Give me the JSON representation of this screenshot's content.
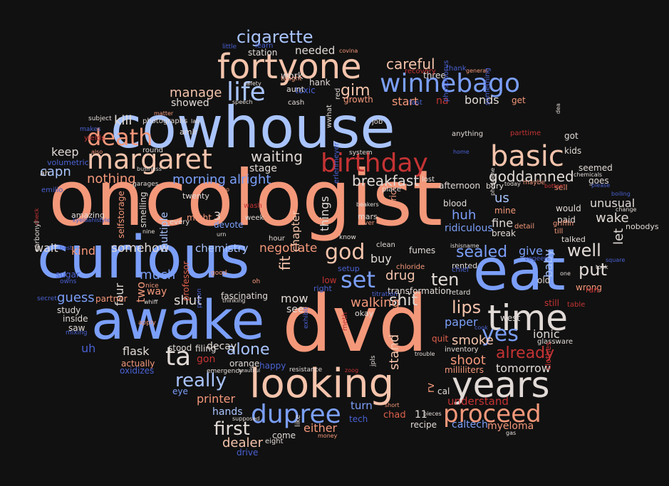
{
  "palette": {
    "background": "#111111",
    "salmon": "#f4987a",
    "light_blue": "#a9c4fd",
    "periwinkle": "#7b9ff9",
    "peach": "#f5c4ac",
    "near_white": "#e1dad6",
    "red": "#c53334",
    "blue": "#4961d2",
    "dark_salmon": "#dd604c"
  },
  "words": [
    {
      "text": "oncologist",
      "color": "salmon"
    },
    {
      "text": "cowhouse",
      "color": "light_blue"
    },
    {
      "text": "curious",
      "color": "periwinkle"
    },
    {
      "text": "dvd",
      "color": "salmon"
    },
    {
      "text": "awake",
      "color": "periwinkle"
    },
    {
      "text": "eat",
      "color": "periwinkle"
    },
    {
      "text": "looking",
      "color": "peach"
    },
    {
      "text": "fortyone",
      "color": "peach"
    },
    {
      "text": "margaret",
      "color": "peach"
    },
    {
      "text": "birthday",
      "color": "red"
    },
    {
      "text": "death",
      "color": "salmon"
    },
    {
      "text": "time",
      "color": "near_white"
    },
    {
      "text": "years",
      "color": "near_white"
    },
    {
      "text": "winnebago",
      "color": "periwinkle"
    },
    {
      "text": "basic",
      "color": "peach"
    },
    {
      "text": "dupree",
      "color": "periwinkle"
    },
    {
      "text": "proceed",
      "color": "salmon"
    },
    {
      "text": "life",
      "color": "light_blue"
    },
    {
      "text": "cigarette",
      "color": "light_blue"
    },
    {
      "text": "god",
      "color": "peach"
    },
    {
      "text": "yes",
      "color": "periwinkle"
    },
    {
      "text": "ta",
      "color": "near_white"
    },
    {
      "text": "set",
      "color": "periwinkle"
    },
    {
      "text": "put",
      "color": "near_white"
    },
    {
      "text": "well",
      "color": "near_white"
    },
    {
      "text": "shit",
      "color": "near_white"
    },
    {
      "text": "lips",
      "color": "peach"
    },
    {
      "text": "really",
      "color": "light_blue"
    },
    {
      "text": "already",
      "color": "red"
    },
    {
      "text": "first",
      "color": "near_white"
    },
    {
      "text": "alone",
      "color": "light_blue"
    },
    {
      "text": "ten",
      "color": "near_white"
    },
    {
      "text": "sealed",
      "color": "periwinkle"
    },
    {
      "text": "careful",
      "color": "peach"
    },
    {
      "text": "gim",
      "color": "peach"
    },
    {
      "text": "waiting",
      "color": "near_white"
    },
    {
      "text": "goddamned",
      "color": "near_white"
    },
    {
      "text": "breakfast",
      "color": "near_white"
    },
    {
      "text": "capn",
      "color": "light_blue"
    },
    {
      "text": "nothing",
      "color": "salmon"
    },
    {
      "text": "morning",
      "color": "periwinkle"
    },
    {
      "text": "alright",
      "color": "periwinkle"
    },
    {
      "text": "much",
      "color": "periwinkle"
    },
    {
      "text": "guess",
      "color": "periwinkle"
    },
    {
      "text": "huh",
      "color": "periwinkle"
    },
    {
      "text": "drug",
      "color": "peach"
    },
    {
      "text": "walking",
      "color": "salmon"
    },
    {
      "text": "smoke",
      "color": "peach"
    },
    {
      "text": "shoot",
      "color": "salmon"
    },
    {
      "text": "tomorrow",
      "color": "near_white"
    },
    {
      "text": "shut",
      "color": "near_white"
    },
    {
      "text": "somehow",
      "color": "near_white"
    },
    {
      "text": "negotiate",
      "color": "salmon"
    },
    {
      "text": "chemistry",
      "color": "light_blue"
    },
    {
      "text": "kill",
      "color": "near_white"
    },
    {
      "text": "manage",
      "color": "peach"
    },
    {
      "text": "keep",
      "color": "near_white"
    },
    {
      "text": "walt",
      "color": "near_white"
    },
    {
      "text": "kind",
      "color": "salmon"
    },
    {
      "text": "printer",
      "color": "salmon"
    },
    {
      "text": "hands",
      "color": "light_blue"
    },
    {
      "text": "dealer",
      "color": "peach"
    },
    {
      "text": "either",
      "color": "salmon"
    },
    {
      "text": "turn",
      "color": "periwinkle"
    },
    {
      "text": "stand",
      "color": "peach"
    },
    {
      "text": "flask",
      "color": "near_white"
    },
    {
      "text": "understand",
      "color": "red"
    },
    {
      "text": "myeloma",
      "color": "salmon"
    },
    {
      "text": "paper",
      "color": "periwinkle"
    },
    {
      "text": "ionic",
      "color": "near_white"
    },
    {
      "text": "wake",
      "color": "near_white"
    },
    {
      "text": "let",
      "color": "near_white"
    },
    {
      "text": "us",
      "color": "light_blue"
    },
    {
      "text": "fine",
      "color": "near_white"
    },
    {
      "text": "unusual",
      "color": "near_white"
    },
    {
      "text": "give",
      "color": "periwinkle"
    },
    {
      "text": "baby",
      "color": "light_blue"
    },
    {
      "text": "start",
      "color": "salmon"
    },
    {
      "text": "bonds",
      "color": "near_white"
    },
    {
      "text": "stage",
      "color": "near_white"
    },
    {
      "text": "fit",
      "color": "peach"
    },
    {
      "text": "chapter",
      "color": "peach"
    },
    {
      "text": "things",
      "color": "near_white"
    },
    {
      "text": "mow",
      "color": "near_white"
    },
    {
      "text": "needed",
      "color": "near_white"
    },
    {
      "text": "multiple",
      "color": "light_blue"
    },
    {
      "text": "decay",
      "color": "near_white"
    },
    {
      "text": "buy",
      "color": "near_white"
    },
    {
      "text": "ridiculous",
      "color": "periwinkle"
    },
    {
      "text": "uh",
      "color": "blue"
    },
    {
      "text": "na",
      "color": "red"
    },
    {
      "text": "two",
      "color": "salmon"
    },
    {
      "text": "way",
      "color": "salmon"
    },
    {
      "text": "professor",
      "color": "dark_salmon"
    },
    {
      "text": "devote",
      "color": "periwinkle"
    },
    {
      "text": "might",
      "color": "salmon"
    },
    {
      "text": "3",
      "color": "near_white"
    },
    {
      "text": "11",
      "color": "near_white"
    },
    {
      "text": "rv",
      "color": "salmon"
    },
    {
      "text": "see",
      "color": "near_white"
    },
    {
      "text": "gon",
      "color": "red"
    },
    {
      "text": "stood",
      "color": "near_white"
    },
    {
      "text": "filing",
      "color": "near_white"
    },
    {
      "text": "showed",
      "color": "near_white"
    },
    {
      "text": "smelling",
      "color": "near_white"
    },
    {
      "text": "selfstorage",
      "color": "salmon"
    },
    {
      "text": "four",
      "color": "near_white"
    },
    {
      "text": "inside",
      "color": "near_white"
    },
    {
      "text": "saw",
      "color": "near_white"
    },
    {
      "text": "study",
      "color": "near_white"
    },
    {
      "text": "partner",
      "color": "salmon"
    },
    {
      "text": "sugar",
      "color": "blue"
    },
    {
      "text": "fascinating",
      "color": "near_white"
    },
    {
      "text": "week",
      "color": "near_white"
    },
    {
      "text": "hour",
      "color": "near_white"
    },
    {
      "text": "wash",
      "color": "red"
    },
    {
      "text": "orange",
      "color": "near_white"
    },
    {
      "text": "happy",
      "color": "blue"
    },
    {
      "text": "okay",
      "color": "near_white"
    },
    {
      "text": "cal",
      "color": "near_white"
    },
    {
      "text": "caltech",
      "color": "periwinkle"
    },
    {
      "text": "chad",
      "color": "dark_salmon"
    },
    {
      "text": "tech",
      "color": "blue"
    },
    {
      "text": "recipe",
      "color": "near_white"
    },
    {
      "text": "come",
      "color": "near_white"
    },
    {
      "text": "drive",
      "color": "blue"
    },
    {
      "text": "eight",
      "color": "near_white"
    },
    {
      "text": "like",
      "color": "near_white"
    },
    {
      "text": "actually",
      "color": "salmon"
    },
    {
      "text": "oxidizes",
      "color": "blue"
    },
    {
      "text": "eye",
      "color": "periwinkle"
    },
    {
      "text": "milliliters",
      "color": "salmon"
    },
    {
      "text": "quit",
      "color": "dark_salmon"
    },
    {
      "text": "inventory",
      "color": "near_white"
    },
    {
      "text": "glassware",
      "color": "near_white"
    },
    {
      "text": "west",
      "color": "near_white"
    },
    {
      "text": "clothes",
      "color": "red"
    },
    {
      "text": "still",
      "color": "red"
    },
    {
      "text": "table",
      "color": "red"
    },
    {
      "text": "wrong",
      "color": "salmon"
    },
    {
      "text": "ran",
      "color": "red"
    },
    {
      "text": "old",
      "color": "near_white"
    },
    {
      "text": "rented",
      "color": "near_white"
    },
    {
      "text": "retard",
      "color": "near_white"
    },
    {
      "text": "chief",
      "color": "blue"
    },
    {
      "text": "transformation",
      "color": "near_white"
    },
    {
      "text": "chloride",
      "color": "salmon"
    },
    {
      "text": "fumes",
      "color": "near_white"
    },
    {
      "text": "clean",
      "color": "near_white"
    },
    {
      "text": "setup",
      "color": "blue"
    },
    {
      "text": "low",
      "color": "red"
    },
    {
      "text": "right",
      "color": "blue"
    },
    {
      "text": "price",
      "color": "salmon"
    },
    {
      "text": "mars",
      "color": "near_white"
    },
    {
      "text": "rover",
      "color": "salmon"
    },
    {
      "text": "erlenmeyer",
      "color": "blue"
    },
    {
      "text": "place",
      "color": "near_white"
    },
    {
      "text": "lost",
      "color": "near_white"
    },
    {
      "text": "afternoon",
      "color": "near_white"
    },
    {
      "text": "blood",
      "color": "near_white"
    },
    {
      "text": "bury",
      "color": "near_white"
    },
    {
      "text": "break",
      "color": "near_white"
    },
    {
      "text": "mine",
      "color": "salmon"
    },
    {
      "text": "detail",
      "color": "salmon"
    },
    {
      "text": "paid",
      "color": "near_white"
    },
    {
      "text": "would",
      "color": "near_white"
    },
    {
      "text": "griffin",
      "color": "salmon"
    },
    {
      "text": "till",
      "color": "salmon"
    },
    {
      "text": "talked",
      "color": "near_white"
    },
    {
      "text": "nobodys",
      "color": "near_white"
    },
    {
      "text": "goes",
      "color": "near_white"
    },
    {
      "text": "seemed",
      "color": "near_white"
    },
    {
      "text": "kids",
      "color": "near_white"
    },
    {
      "text": "got",
      "color": "near_white"
    },
    {
      "text": "sell",
      "color": "salmon"
    },
    {
      "text": "get",
      "color": "salmon"
    },
    {
      "text": "cash",
      "color": "near_white"
    },
    {
      "text": "growth",
      "color": "salmon"
    },
    {
      "text": "toxic",
      "color": "blue"
    },
    {
      "text": "aunt",
      "color": "near_white"
    },
    {
      "text": "hank",
      "color": "near_white"
    },
    {
      "text": "work",
      "color": "near_white"
    },
    {
      "text": "taught",
      "color": "salmon"
    },
    {
      "text": "station",
      "color": "near_white"
    },
    {
      "text": "learn",
      "color": "blue"
    },
    {
      "text": "little",
      "color": "blue"
    },
    {
      "text": "covina",
      "color": "salmon"
    },
    {
      "text": "thank",
      "color": "blue"
    },
    {
      "text": "general",
      "color": "salmon"
    },
    {
      "text": "three",
      "color": "near_white"
    },
    {
      "text": "recovery",
      "color": "red"
    },
    {
      "text": "fast",
      "color": "blue"
    },
    {
      "text": "job",
      "color": "near_white"
    },
    {
      "text": "wwhat",
      "color": "near_white"
    },
    {
      "text": "red",
      "color": "near_white"
    },
    {
      "text": "system",
      "color": "near_white"
    },
    {
      "text": "phosphorus",
      "color": "blue"
    },
    {
      "text": "anything",
      "color": "near_white"
    },
    {
      "text": "something",
      "color": "blue"
    },
    {
      "text": "home",
      "color": "blue"
    },
    {
      "text": "parttime",
      "color": "red"
    },
    {
      "text": "photographs",
      "color": "near_white"
    },
    {
      "text": "matter",
      "color": "salmon"
    },
    {
      "text": "subject",
      "color": "near_white"
    },
    {
      "text": "makes",
      "color": "blue"
    },
    {
      "text": "yields",
      "color": "red"
    },
    {
      "text": "lab",
      "color": "near_white"
    },
    {
      "text": "amir",
      "color": "near_white"
    },
    {
      "text": "round",
      "color": "near_white"
    },
    {
      "text": "also",
      "color": "salmon"
    },
    {
      "text": "business",
      "color": "near_white"
    },
    {
      "text": "volumetric",
      "color": "blue"
    },
    {
      "text": "ah",
      "color": "near_white"
    },
    {
      "text": "emilio",
      "color": "blue"
    },
    {
      "text": "garages",
      "color": "near_white"
    },
    {
      "text": "twenty",
      "color": "near_white"
    },
    {
      "text": "amazing",
      "color": "near_white"
    },
    {
      "text": "carbonyl",
      "color": "near_white"
    },
    {
      "text": "owns",
      "color": "blue"
    },
    {
      "text": "secret",
      "color": "blue"
    },
    {
      "text": "mixing",
      "color": "blue"
    },
    {
      "text": "every",
      "color": "near_white"
    },
    {
      "text": "nine",
      "color": "near_white"
    },
    {
      "text": "urn",
      "color": "near_white"
    },
    {
      "text": "go",
      "color": "salmon"
    },
    {
      "text": "know",
      "color": "near_white"
    },
    {
      "text": "good",
      "color": "salmon"
    },
    {
      "text": "oh",
      "color": "salmon"
    },
    {
      "text": "nice",
      "color": "salmon"
    },
    {
      "text": "whiff",
      "color": "near_white"
    },
    {
      "text": "apply",
      "color": "salmon"
    },
    {
      "text": "prison",
      "color": "blue"
    },
    {
      "text": "thinking",
      "color": "near_white"
    },
    {
      "text": "emergency",
      "color": "near_white"
    },
    {
      "text": "resistance",
      "color": "near_white"
    },
    {
      "text": "exhibit",
      "color": "blue"
    },
    {
      "text": "beautiful",
      "color": "near_white"
    },
    {
      "text": "meth",
      "color": "red"
    },
    {
      "text": "zoog",
      "color": "red"
    },
    {
      "text": "jpls",
      "color": "near_white"
    },
    {
      "text": "short",
      "color": "salmon"
    },
    {
      "text": "trouble",
      "color": "near_white"
    },
    {
      "text": "pieces",
      "color": "near_white"
    },
    {
      "text": "gas",
      "color": "near_white"
    },
    {
      "text": "money",
      "color": "salmon"
    },
    {
      "text": "supposed",
      "color": "near_white"
    },
    {
      "text": "titration",
      "color": "blue"
    },
    {
      "text": "cook",
      "color": "blue"
    },
    {
      "text": "speech",
      "color": "near_white"
    },
    {
      "text": "safety",
      "color": "near_white"
    },
    {
      "text": "beakers",
      "color": "near_white"
    },
    {
      "text": "ishisname",
      "color": "near_white"
    },
    {
      "text": "today",
      "color": "near_white"
    },
    {
      "text": "maybe",
      "color": "salmon"
    },
    {
      "text": "vegeen",
      "color": "blue"
    },
    {
      "text": "one",
      "color": "near_white"
    },
    {
      "text": "square",
      "color": "blue"
    },
    {
      "text": "took",
      "color": "near_white"
    },
    {
      "text": "please",
      "color": "blue"
    },
    {
      "text": "change",
      "color": "near_white"
    },
    {
      "text": "chemicals",
      "color": "near_white"
    },
    {
      "text": "boiling",
      "color": "blue"
    },
    {
      "text": "bottom",
      "color": "red"
    },
    {
      "text": "dea",
      "color": "near_white"
    },
    {
      "text": "phosgene",
      "color": "near_white"
    },
    {
      "text": "check",
      "color": "red"
    },
    {
      "text": "best",
      "color": "blue"
    },
    {
      "text": "kyeldahlstyle",
      "color": "blue"
    },
    {
      "text": "class",
      "color": "blue"
    },
    {
      "text": "5000",
      "color": "near_white"
    }
  ]
}
